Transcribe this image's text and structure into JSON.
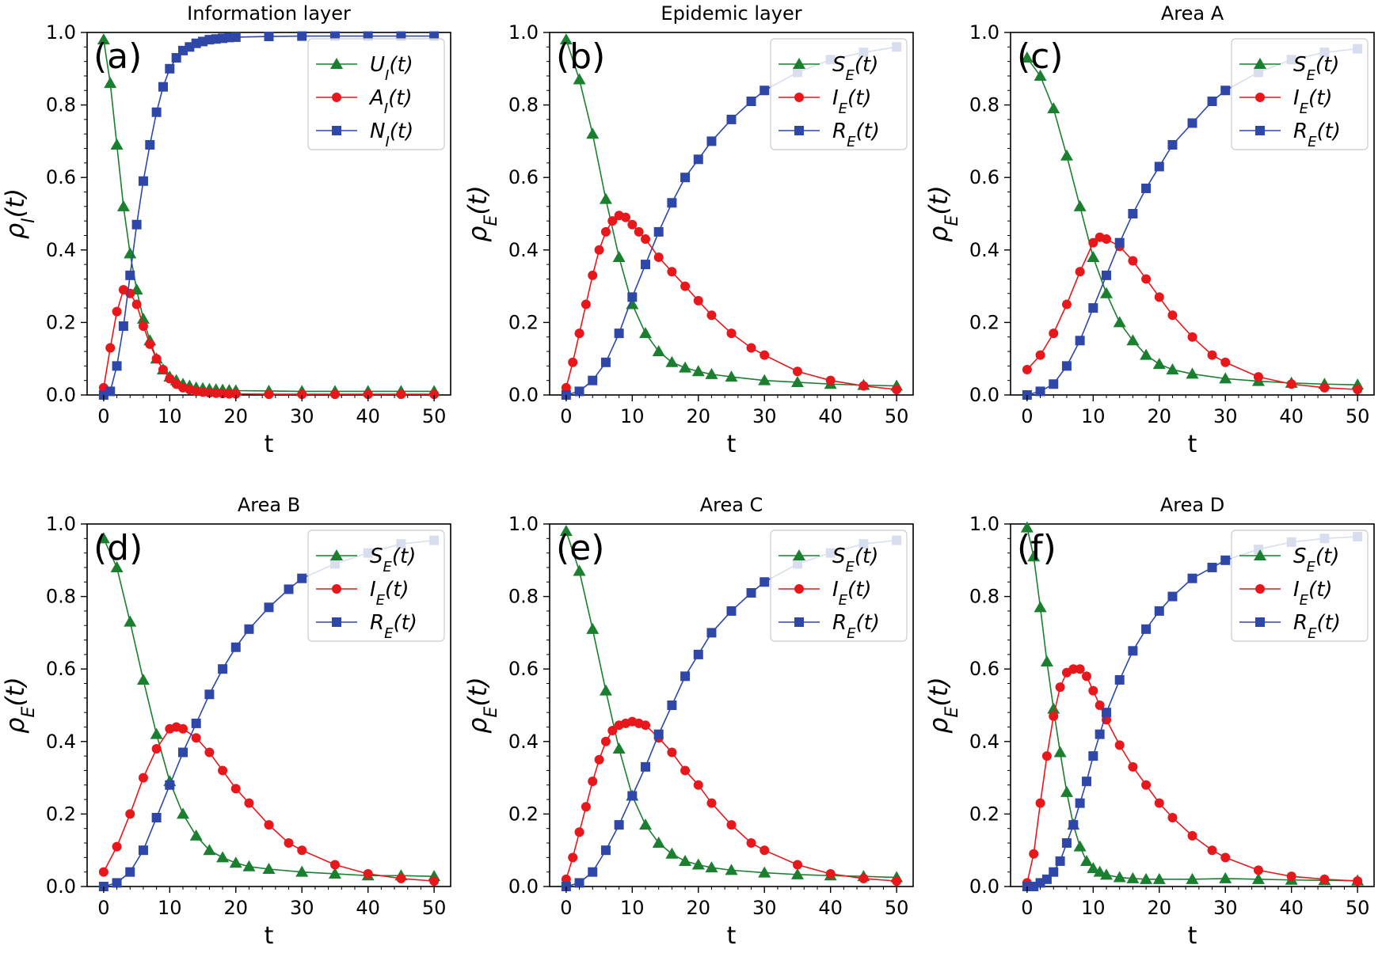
{
  "colors": {
    "green": "#1a7f2e",
    "red": "#e8171c",
    "blue": "#2e47a8"
  },
  "chart_data": [
    {
      "type": "line",
      "panel_label": "(a)",
      "title": "Information layer",
      "xlabel": "t",
      "ylabel": "ρ",
      "ylabel_sub": "I",
      "xlim": [
        0,
        50
      ],
      "ylim": [
        0,
        1
      ],
      "xticks": [
        "0",
        "10",
        "20",
        "30",
        "40",
        "50"
      ],
      "yticks": [
        "0.0",
        "0.2",
        "0.4",
        "0.6",
        "0.8",
        "1.0"
      ],
      "legend_position": "top-right",
      "series": [
        {
          "name": "U_I(t)",
          "color": "green",
          "marker": "triangle",
          "x": [
            0,
            1,
            2,
            3,
            4,
            5,
            6,
            7,
            8,
            9,
            10,
            11,
            12,
            13,
            14,
            15,
            16,
            17,
            18,
            19,
            20,
            25,
            30,
            35,
            40,
            45,
            50
          ],
          "y": [
            0.98,
            0.86,
            0.69,
            0.52,
            0.39,
            0.29,
            0.21,
            0.15,
            0.1,
            0.07,
            0.05,
            0.04,
            0.03,
            0.025,
            0.02,
            0.018,
            0.016,
            0.015,
            0.014,
            0.013,
            0.012,
            0.011,
            0.01,
            0.01,
            0.01,
            0.01,
            0.01
          ]
        },
        {
          "name": "A_I(t)",
          "color": "red",
          "marker": "circle",
          "x": [
            0,
            1,
            2,
            3,
            4,
            5,
            6,
            7,
            8,
            9,
            10,
            11,
            12,
            13,
            14,
            15,
            16,
            17,
            18,
            19,
            20,
            25,
            30,
            35,
            40,
            45,
            50
          ],
          "y": [
            0.02,
            0.13,
            0.23,
            0.29,
            0.28,
            0.25,
            0.19,
            0.14,
            0.1,
            0.07,
            0.045,
            0.03,
            0.02,
            0.015,
            0.01,
            0.008,
            0.006,
            0.005,
            0.004,
            0.003,
            0.003,
            0.002,
            0.002,
            0.002,
            0.002,
            0.002,
            0.002
          ]
        },
        {
          "name": "N_I(t)",
          "color": "blue",
          "marker": "square",
          "x": [
            0,
            1,
            2,
            3,
            4,
            5,
            6,
            7,
            8,
            9,
            10,
            11,
            12,
            13,
            14,
            15,
            16,
            17,
            18,
            19,
            20,
            25,
            30,
            35,
            40,
            45,
            50
          ],
          "y": [
            0.0,
            0.01,
            0.08,
            0.19,
            0.33,
            0.47,
            0.59,
            0.69,
            0.78,
            0.85,
            0.9,
            0.93,
            0.95,
            0.96,
            0.97,
            0.975,
            0.98,
            0.982,
            0.984,
            0.986,
            0.987,
            0.989,
            0.99,
            0.99,
            0.99,
            0.99,
            0.99
          ]
        }
      ]
    },
    {
      "type": "line",
      "panel_label": "(b)",
      "title": "Epidemic layer",
      "xlabel": "t",
      "ylabel": "ρ",
      "ylabel_sub": "E",
      "xlim": [
        0,
        50
      ],
      "ylim": [
        0,
        1
      ],
      "xticks": [
        "0",
        "10",
        "20",
        "30",
        "40",
        "50"
      ],
      "yticks": [
        "0.0",
        "0.2",
        "0.4",
        "0.6",
        "0.8",
        "1.0"
      ],
      "legend_position": "top-right",
      "series": [
        {
          "name": "S_E(t)",
          "color": "green",
          "marker": "triangle",
          "x": [
            0,
            2,
            4,
            6,
            8,
            10,
            12,
            14,
            16,
            18,
            20,
            22,
            25,
            30,
            35,
            40,
            45,
            50
          ],
          "y": [
            0.98,
            0.87,
            0.72,
            0.54,
            0.38,
            0.25,
            0.17,
            0.12,
            0.09,
            0.075,
            0.065,
            0.057,
            0.05,
            0.04,
            0.035,
            0.03,
            0.027,
            0.025
          ]
        },
        {
          "name": "I_E(t)",
          "color": "red",
          "marker": "circle",
          "x": [
            0,
            1,
            2,
            3,
            4,
            5,
            6,
            7,
            8,
            9,
            10,
            11,
            12,
            14,
            16,
            18,
            20,
            22,
            25,
            28,
            30,
            35,
            40,
            45,
            50
          ],
          "y": [
            0.02,
            0.09,
            0.17,
            0.25,
            0.33,
            0.4,
            0.45,
            0.48,
            0.495,
            0.49,
            0.47,
            0.45,
            0.43,
            0.38,
            0.34,
            0.3,
            0.26,
            0.22,
            0.17,
            0.13,
            0.11,
            0.065,
            0.04,
            0.025,
            0.015
          ]
        },
        {
          "name": "R_E(t)",
          "color": "blue",
          "marker": "square",
          "x": [
            0,
            2,
            4,
            6,
            8,
            10,
            12,
            14,
            16,
            18,
            20,
            22,
            25,
            28,
            30,
            35,
            40,
            45,
            50
          ],
          "y": [
            0.0,
            0.01,
            0.04,
            0.09,
            0.17,
            0.27,
            0.36,
            0.45,
            0.53,
            0.6,
            0.65,
            0.7,
            0.76,
            0.81,
            0.84,
            0.89,
            0.925,
            0.945,
            0.96
          ]
        }
      ]
    },
    {
      "type": "line",
      "panel_label": "(c)",
      "title": "Area A",
      "xlabel": "t",
      "ylabel": "ρ",
      "ylabel_sub": "E",
      "xlim": [
        0,
        50
      ],
      "ylim": [
        0,
        1
      ],
      "xticks": [
        "0",
        "10",
        "20",
        "30",
        "40",
        "50"
      ],
      "yticks": [
        "0.0",
        "0.2",
        "0.4",
        "0.6",
        "0.8",
        "1.0"
      ],
      "legend_position": "top-right",
      "series": [
        {
          "name": "S_E(t)",
          "color": "green",
          "marker": "triangle",
          "x": [
            0,
            2,
            4,
            6,
            8,
            10,
            12,
            14,
            16,
            18,
            20,
            22,
            25,
            30,
            35,
            40,
            45,
            50
          ],
          "y": [
            0.93,
            0.88,
            0.79,
            0.66,
            0.52,
            0.38,
            0.28,
            0.2,
            0.15,
            0.11,
            0.085,
            0.07,
            0.058,
            0.045,
            0.038,
            0.033,
            0.03,
            0.028
          ]
        },
        {
          "name": "I_E(t)",
          "color": "red",
          "marker": "circle",
          "x": [
            0,
            2,
            4,
            6,
            8,
            10,
            11,
            12,
            14,
            16,
            18,
            20,
            22,
            25,
            28,
            30,
            35,
            40,
            45,
            50
          ],
          "y": [
            0.07,
            0.11,
            0.17,
            0.25,
            0.34,
            0.42,
            0.435,
            0.43,
            0.41,
            0.37,
            0.32,
            0.27,
            0.22,
            0.16,
            0.11,
            0.09,
            0.05,
            0.03,
            0.02,
            0.015
          ]
        },
        {
          "name": "R_E(t)",
          "color": "blue",
          "marker": "square",
          "x": [
            0,
            2,
            4,
            6,
            8,
            10,
            12,
            14,
            16,
            18,
            20,
            22,
            25,
            28,
            30,
            35,
            40,
            45,
            50
          ],
          "y": [
            0.0,
            0.01,
            0.03,
            0.08,
            0.15,
            0.24,
            0.33,
            0.42,
            0.5,
            0.57,
            0.63,
            0.69,
            0.75,
            0.81,
            0.84,
            0.89,
            0.925,
            0.945,
            0.955
          ]
        }
      ]
    },
    {
      "type": "line",
      "panel_label": "(d)",
      "title": "Area B",
      "xlabel": "t",
      "ylabel": "ρ",
      "ylabel_sub": "E",
      "xlim": [
        0,
        50
      ],
      "ylim": [
        0,
        1
      ],
      "xticks": [
        "0",
        "10",
        "20",
        "30",
        "40",
        "50"
      ],
      "yticks": [
        "0.0",
        "0.2",
        "0.4",
        "0.6",
        "0.8",
        "1.0"
      ],
      "legend_position": "top-right",
      "series": [
        {
          "name": "S_E(t)",
          "color": "green",
          "marker": "triangle",
          "x": [
            0,
            2,
            4,
            6,
            8,
            10,
            12,
            14,
            16,
            18,
            20,
            22,
            25,
            30,
            35,
            40,
            45,
            50
          ],
          "y": [
            0.96,
            0.88,
            0.73,
            0.57,
            0.42,
            0.29,
            0.2,
            0.14,
            0.1,
            0.08,
            0.065,
            0.055,
            0.048,
            0.04,
            0.035,
            0.03,
            0.03,
            0.028
          ]
        },
        {
          "name": "I_E(t)",
          "color": "red",
          "marker": "circle",
          "x": [
            0,
            2,
            4,
            6,
            8,
            10,
            11,
            12,
            14,
            16,
            18,
            20,
            22,
            25,
            28,
            30,
            35,
            40,
            45,
            50
          ],
          "y": [
            0.04,
            0.11,
            0.2,
            0.3,
            0.38,
            0.435,
            0.44,
            0.435,
            0.41,
            0.37,
            0.32,
            0.27,
            0.23,
            0.17,
            0.12,
            0.1,
            0.06,
            0.035,
            0.022,
            0.015
          ]
        },
        {
          "name": "R_E(t)",
          "color": "blue",
          "marker": "square",
          "x": [
            0,
            2,
            4,
            6,
            8,
            10,
            12,
            14,
            16,
            18,
            20,
            22,
            25,
            28,
            30,
            35,
            40,
            45,
            50
          ],
          "y": [
            0.0,
            0.01,
            0.04,
            0.1,
            0.19,
            0.28,
            0.37,
            0.45,
            0.53,
            0.6,
            0.66,
            0.71,
            0.77,
            0.82,
            0.85,
            0.89,
            0.92,
            0.945,
            0.955
          ]
        }
      ]
    },
    {
      "type": "line",
      "panel_label": "(e)",
      "title": "Area C",
      "xlabel": "t",
      "ylabel": "ρ",
      "ylabel_sub": "E",
      "xlim": [
        0,
        50
      ],
      "ylim": [
        0,
        1
      ],
      "xticks": [
        "0",
        "10",
        "20",
        "30",
        "40",
        "50"
      ],
      "yticks": [
        "0.0",
        "0.2",
        "0.4",
        "0.6",
        "0.8",
        "1.0"
      ],
      "legend_position": "top-right",
      "series": [
        {
          "name": "S_E(t)",
          "color": "green",
          "marker": "triangle",
          "x": [
            0,
            2,
            4,
            6,
            8,
            10,
            12,
            14,
            16,
            18,
            20,
            22,
            25,
            30,
            35,
            40,
            45,
            50
          ],
          "y": [
            0.98,
            0.87,
            0.71,
            0.54,
            0.38,
            0.25,
            0.17,
            0.12,
            0.09,
            0.07,
            0.06,
            0.052,
            0.045,
            0.038,
            0.033,
            0.03,
            0.028,
            0.025
          ]
        },
        {
          "name": "I_E(t)",
          "color": "red",
          "marker": "circle",
          "x": [
            0,
            1,
            2,
            3,
            4,
            5,
            6,
            7,
            8,
            9,
            10,
            11,
            12,
            14,
            16,
            18,
            20,
            22,
            25,
            28,
            30,
            35,
            40,
            45,
            50
          ],
          "y": [
            0.02,
            0.08,
            0.15,
            0.22,
            0.29,
            0.35,
            0.4,
            0.43,
            0.445,
            0.45,
            0.455,
            0.45,
            0.445,
            0.41,
            0.37,
            0.32,
            0.28,
            0.23,
            0.17,
            0.12,
            0.1,
            0.06,
            0.035,
            0.022,
            0.015
          ]
        },
        {
          "name": "R_E(t)",
          "color": "blue",
          "marker": "square",
          "x": [
            0,
            2,
            4,
            6,
            8,
            10,
            12,
            14,
            16,
            18,
            20,
            22,
            25,
            28,
            30,
            35,
            40,
            45,
            50
          ],
          "y": [
            0.0,
            0.01,
            0.04,
            0.1,
            0.17,
            0.25,
            0.33,
            0.42,
            0.5,
            0.58,
            0.64,
            0.7,
            0.76,
            0.81,
            0.84,
            0.89,
            0.92,
            0.945,
            0.955
          ]
        }
      ]
    },
    {
      "type": "line",
      "panel_label": "(f)",
      "title": "Area D",
      "xlabel": "t",
      "ylabel": "ρ",
      "ylabel_sub": "E",
      "xlim": [
        0,
        50
      ],
      "ylim": [
        0,
        1
      ],
      "xticks": [
        "0",
        "10",
        "20",
        "30",
        "40",
        "50"
      ],
      "yticks": [
        "0.0",
        "0.2",
        "0.4",
        "0.6",
        "0.8",
        "1.0"
      ],
      "legend_position": "top-right",
      "series": [
        {
          "name": "S_E(t)",
          "color": "green",
          "marker": "triangle",
          "x": [
            0,
            1,
            2,
            3,
            4,
            5,
            6,
            7,
            8,
            9,
            10,
            11,
            12,
            14,
            16,
            18,
            20,
            25,
            30,
            35,
            40,
            45,
            50
          ],
          "y": [
            0.99,
            0.91,
            0.77,
            0.62,
            0.49,
            0.37,
            0.26,
            0.17,
            0.11,
            0.07,
            0.05,
            0.04,
            0.032,
            0.025,
            0.022,
            0.02,
            0.02,
            0.02,
            0.022,
            0.02,
            0.018,
            0.017,
            0.016
          ]
        },
        {
          "name": "I_E(t)",
          "color": "red",
          "marker": "circle",
          "x": [
            0,
            1,
            2,
            3,
            4,
            5,
            6,
            7,
            8,
            9,
            10,
            11,
            12,
            14,
            16,
            18,
            20,
            22,
            25,
            28,
            30,
            35,
            40,
            45,
            50
          ],
          "y": [
            0.01,
            0.09,
            0.23,
            0.36,
            0.47,
            0.55,
            0.59,
            0.6,
            0.6,
            0.58,
            0.54,
            0.5,
            0.46,
            0.39,
            0.33,
            0.28,
            0.23,
            0.19,
            0.14,
            0.1,
            0.08,
            0.045,
            0.028,
            0.02,
            0.015
          ]
        },
        {
          "name": "R_E(t)",
          "color": "blue",
          "marker": "square",
          "x": [
            0,
            1,
            2,
            3,
            4,
            5,
            6,
            7,
            8,
            9,
            10,
            11,
            12,
            14,
            16,
            18,
            20,
            22,
            25,
            28,
            30,
            35,
            40,
            45,
            50
          ],
          "y": [
            0.0,
            0.0,
            0.01,
            0.02,
            0.04,
            0.07,
            0.12,
            0.17,
            0.23,
            0.29,
            0.36,
            0.42,
            0.48,
            0.57,
            0.65,
            0.71,
            0.76,
            0.8,
            0.85,
            0.88,
            0.9,
            0.93,
            0.95,
            0.96,
            0.965
          ]
        }
      ]
    }
  ]
}
